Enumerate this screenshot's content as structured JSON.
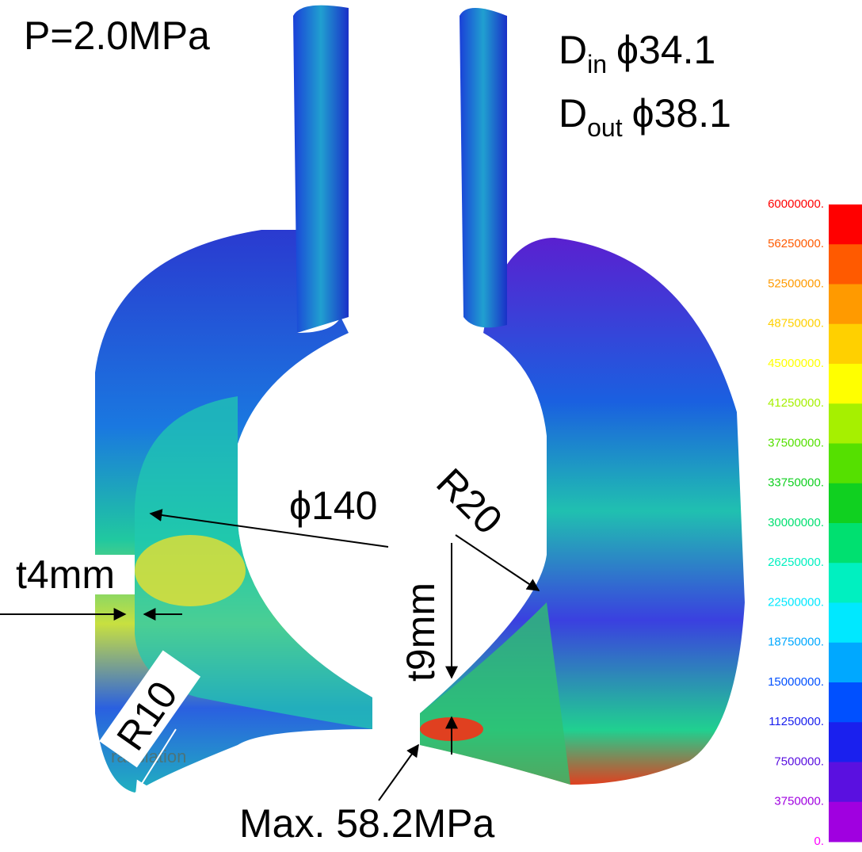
{
  "header": {
    "pressure": "P=2.0MPa"
  },
  "dimensions": [
    {
      "base": "D",
      "sub": "in",
      "value": "ϕ34.1"
    },
    {
      "base": "D",
      "sub": "out",
      "value": "ϕ38.1"
    }
  ],
  "annotations": {
    "diameter": "ϕ140",
    "radius_large": "R20",
    "radius_small": "R10",
    "thickness_wall": "t4mm",
    "thickness_bottom": "t9mm",
    "max_stress": "Max. 58.2MPa",
    "overlay_text": "ranslation"
  },
  "legend": {
    "labels": [
      "60000000.",
      "56250000.",
      "52500000.",
      "48750000.",
      "45000000.",
      "41250000.",
      "37500000.",
      "33750000.",
      "30000000.",
      "26250000.",
      "22500000.",
      "18750000.",
      "15000000.",
      "11250000.",
      "7500000.",
      "3750000.",
      "0."
    ],
    "colors": [
      "#ff0000",
      "#ff5a00",
      "#ff9a00",
      "#ffd000",
      "#ffff00",
      "#a6f000",
      "#55e000",
      "#10d020",
      "#00e070",
      "#00f0c0",
      "#00e8ff",
      "#00a8ff",
      "#0050ff",
      "#1a20ee",
      "#5a10e0",
      "#a000e0",
      "#ff00ff"
    ]
  }
}
